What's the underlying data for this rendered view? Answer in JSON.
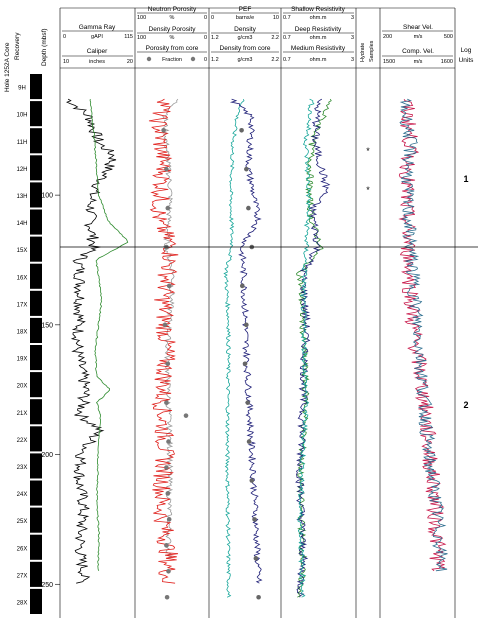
{
  "figure": {
    "hole_label": "Hole 1252A Core",
    "recovery_label": "Recovery",
    "depth_label": "Depth (mbsf)",
    "hydrate_label_1": "Hydrate",
    "hydrate_label_2": "Samples",
    "log_units_label_1": "Log",
    "log_units_label_2": "Units",
    "colors": {
      "black": "#000000",
      "green": "#2e8b2e",
      "red": "#e0201c",
      "teal": "#1aa79b",
      "navy": "#1f1f78",
      "gray": "#9a9a9a",
      "crimson": "#c8184a",
      "steel": "#2d6e8f"
    }
  },
  "tracks": {
    "gamma": {
      "title": "Gamma Ray",
      "min": "0",
      "unit": "gAPI",
      "max": "115"
    },
    "caliper": {
      "title": "Caliper",
      "min": "10",
      "unit": "inches",
      "max": "20"
    },
    "neutron": {
      "title": "Neutron Porosity",
      "min": "100",
      "unit": "%",
      "max": "0"
    },
    "density_por": {
      "title": "Density Porosity",
      "min": "100",
      "unit": "%",
      "max": "0"
    },
    "porosity_core": {
      "title": "Porosity from core",
      "min": "",
      "unit": "Fraction",
      "max": "0"
    },
    "pef": {
      "title": "PEF",
      "min": "0",
      "unit": "barns/e",
      "max": "10"
    },
    "density": {
      "title": "Density",
      "min": "1.2",
      "unit": "g/cm3",
      "max": "2.2"
    },
    "density_core": {
      "title": "Density from core",
      "min": "1.2",
      "unit": "g/cm3",
      "max": "2.2"
    },
    "shallow_res": {
      "title": "Shallow Resistivity",
      "min": "0.7",
      "unit": "ohm.m",
      "max": "3"
    },
    "deep_res": {
      "title": "Deep Resistivity",
      "min": "0.7",
      "unit": "ohm.m",
      "max": "3"
    },
    "medium_res": {
      "title": "Medium Resistivity",
      "min": "0.7",
      "unit": "ohm.m",
      "max": "3"
    },
    "shear_vel": {
      "title": "Shear Vel.",
      "min": "200",
      "unit": "m/s",
      "max": "500"
    },
    "comp_vel": {
      "title": "Comp. Vel.",
      "min": "1500",
      "unit": "m/s",
      "max": "1600"
    }
  },
  "chart_data": {
    "type": "line",
    "y_axis": {
      "label": "Depth (mbsf)",
      "ticks": [
        100,
        150,
        200,
        250
      ],
      "range": [
        51,
        263
      ],
      "inverted": true
    },
    "cores": [
      "9H",
      "10H",
      "11H",
      "12H",
      "13H",
      "14H",
      "15X",
      "16X",
      "17X",
      "18X",
      "19X",
      "20X",
      "21X",
      "22X",
      "23X",
      "24X",
      "25X",
      "26X",
      "27X",
      "28X"
    ],
    "log_unit_boundary_depth": 120,
    "log_units": [
      {
        "label": "1",
        "depth": 95
      },
      {
        "label": "2",
        "depth": 182
      }
    ],
    "hydrate_sample_depths": [
      83,
      98
    ],
    "series": [
      {
        "name": "Gamma Ray",
        "track": "gamma",
        "color": "#000000",
        "range": [
          0,
          115
        ],
        "depth": [
          63,
          70,
          80,
          85,
          95,
          100,
          110,
          120,
          125,
          140,
          160,
          175,
          185,
          190,
          200,
          210,
          220,
          230,
          240,
          245,
          250
        ],
        "values": [
          10,
          45,
          60,
          85,
          62,
          48,
          46,
          52,
          28,
          30,
          25,
          38,
          30,
          60,
          32,
          28,
          35,
          30,
          30,
          36,
          32
        ]
      },
      {
        "name": "Caliper",
        "track": "caliper",
        "color": "#2e8b2e",
        "range": [
          10,
          20
        ],
        "depth": [
          63,
          80,
          100,
          110,
          118,
          125,
          140,
          160,
          170,
          175,
          180,
          185,
          200,
          220,
          230,
          245
        ],
        "values": [
          14,
          14.6,
          15.2,
          16.5,
          19.4,
          14.8,
          15.6,
          14.7,
          14.9,
          16.8,
          14.9,
          15.4,
          15.1,
          14.9,
          15.2,
          15.1
        ]
      },
      {
        "name": "Neutron Porosity",
        "track": "neutron",
        "color": "#9a9a9a",
        "range": [
          100,
          0
        ],
        "depth": [
          63,
          70,
          80,
          100,
          120,
          130,
          160,
          200,
          240
        ],
        "values": [
          42,
          60,
          58,
          52,
          58,
          48,
          57,
          53,
          55
        ]
      },
      {
        "name": "Density Porosity",
        "track": "density_por",
        "color": "#e0201c",
        "range": [
          100,
          0
        ],
        "depth": [
          63,
          70,
          90,
          110,
          120,
          140,
          160,
          180,
          200,
          220,
          238,
          250
        ],
        "values": [
          55,
          70,
          62,
          70,
          50,
          62,
          58,
          64,
          60,
          66,
          55,
          57
        ]
      },
      {
        "name": "Porosity from core",
        "track": "porosity_core",
        "color": "#777777",
        "range": [
          100,
          0
        ],
        "depth": [
          75,
          90,
          105,
          120,
          135,
          150,
          165,
          180,
          185,
          195,
          205,
          215,
          225,
          235,
          245,
          255
        ],
        "values": [
          62,
          58,
          56,
          58,
          54,
          60,
          56,
          58,
          30,
          55,
          58,
          56,
          54,
          58,
          55,
          57
        ]
      },
      {
        "name": "PEF",
        "track": "pef",
        "color": "#1aa79b",
        "range": [
          0,
          10
        ],
        "depth": [
          63,
          70,
          80,
          100,
          120,
          130,
          150,
          175,
          200,
          225,
          255
        ],
        "values": [
          4.8,
          3.8,
          3.2,
          2.9,
          3.1,
          2.2,
          2.6,
          2.5,
          2.4,
          2.5,
          2.6
        ]
      },
      {
        "name": "Density",
        "track": "density",
        "color": "#1f1f78",
        "range": [
          1.2,
          2.2
        ],
        "depth": [
          63,
          70,
          90,
          110,
          120,
          130,
          160,
          190,
          220,
          250
        ],
        "values": [
          1.5,
          1.8,
          1.75,
          1.9,
          1.65,
          1.68,
          1.72,
          1.78,
          1.85,
          1.9
        ]
      },
      {
        "name": "Density from core",
        "track": "density_core",
        "color": "#666666",
        "range": [
          1.2,
          2.2
        ],
        "depth": [
          75,
          90,
          105,
          120,
          135,
          150,
          165,
          180,
          195,
          210,
          225,
          240,
          255
        ],
        "values": [
          1.65,
          1.72,
          1.75,
          1.8,
          1.66,
          1.72,
          1.7,
          1.74,
          1.76,
          1.8,
          1.84,
          1.86,
          1.9
        ]
      },
      {
        "name": "Shallow Resistivity",
        "track": "shallow_res",
        "color": "#2e8b2e",
        "range": [
          0.7,
          3
        ],
        "depth": [
          63,
          80,
          100,
          110,
          120,
          130,
          150,
          180,
          210,
          240,
          255
        ],
        "values": [
          2.2,
          1.6,
          1.5,
          1.6,
          1.9,
          1.2,
          1.3,
          1.4,
          1.2,
          1.3,
          1.2
        ]
      },
      {
        "name": "Deep Resistivity",
        "track": "deep_res",
        "color": "#1f1f78",
        "range": [
          0.7,
          3
        ],
        "depth": [
          63,
          80,
          98,
          105,
          120,
          130,
          150,
          180,
          210,
          240,
          255
        ],
        "values": [
          1.8,
          1.7,
          2.1,
          1.6,
          1.8,
          1.3,
          1.4,
          1.3,
          1.2,
          1.3,
          1.2
        ]
      },
      {
        "name": "Medium Resistivity",
        "track": "medium_res",
        "color": "#1aa79b",
        "range": [
          0.7,
          3
        ],
        "depth": [
          63,
          80,
          100,
          120,
          140,
          180,
          220,
          255
        ],
        "values": [
          1.6,
          1.4,
          1.5,
          1.4,
          1.3,
          1.4,
          1.2,
          1.3
        ]
      },
      {
        "name": "Shear Vel.",
        "track": "shear_vel",
        "color": "#c8184a",
        "range": [
          200,
          500
        ],
        "depth": [
          63,
          80,
          100,
          120,
          150,
          180,
          200,
          215,
          230,
          245
        ],
        "values": [
          300,
          320,
          300,
          310,
          330,
          380,
          400,
          420,
          430,
          440
        ]
      },
      {
        "name": "Comp. Vel.",
        "track": "comp_vel",
        "color": "#2d6e8f",
        "range": [
          1500,
          1600
        ],
        "depth": [
          63,
          80,
          100,
          120,
          150,
          180,
          200,
          215,
          230,
          245
        ],
        "values": [
          1530,
          1540,
          1535,
          1540,
          1550,
          1560,
          1565,
          1575,
          1580,
          1585
        ]
      }
    ]
  }
}
